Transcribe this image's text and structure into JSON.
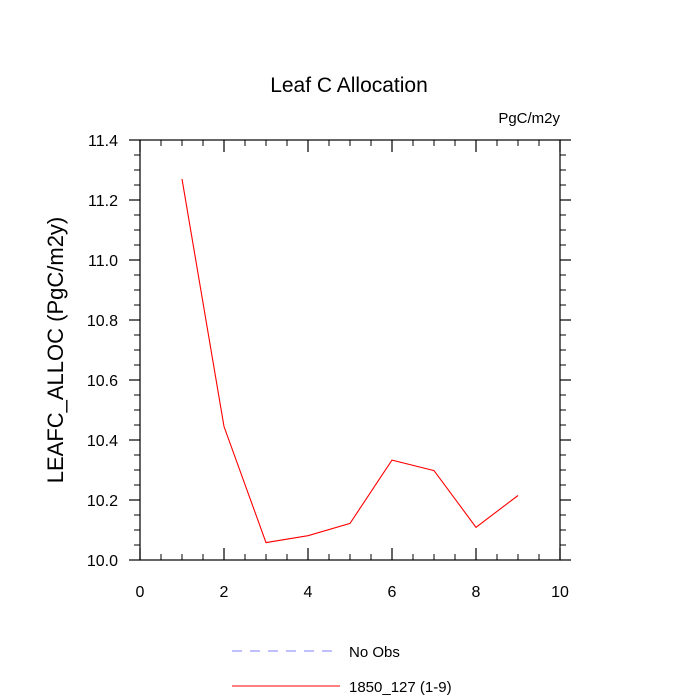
{
  "chart_data": {
    "type": "line",
    "title": "Leaf C Allocation",
    "units_label": "PgC/m2y",
    "xlabel": "",
    "ylabel": "LEAFC_ALLOC  (PgC/m2y)",
    "xlim": [
      0,
      10
    ],
    "ylim": [
      10.0,
      11.4
    ],
    "x_ticks": [
      0,
      2,
      4,
      6,
      8,
      10
    ],
    "x_tick_labels": [
      "0",
      "2",
      "4",
      "6",
      "8",
      "10"
    ],
    "y_ticks": [
      10.0,
      10.2,
      10.4,
      10.6,
      10.8,
      11.0,
      11.2,
      11.4
    ],
    "y_tick_labels": [
      "10.0",
      "10.2",
      "10.4",
      "10.6",
      "10.8",
      "11.0",
      "11.2",
      "11.4"
    ],
    "grid": false,
    "legend_position": "bottom",
    "series": [
      {
        "name": "No Obs",
        "color": "#8080ff",
        "dashed": true,
        "x": [],
        "y": []
      },
      {
        "name": "1850_127 (1-9)",
        "color": "#ff0000",
        "dashed": false,
        "x": [
          1,
          2,
          3,
          4,
          5,
          6,
          7,
          8,
          9
        ],
        "y": [
          11.27,
          10.445,
          10.058,
          10.081,
          10.122,
          10.333,
          10.298,
          10.109,
          10.215
        ]
      }
    ]
  }
}
